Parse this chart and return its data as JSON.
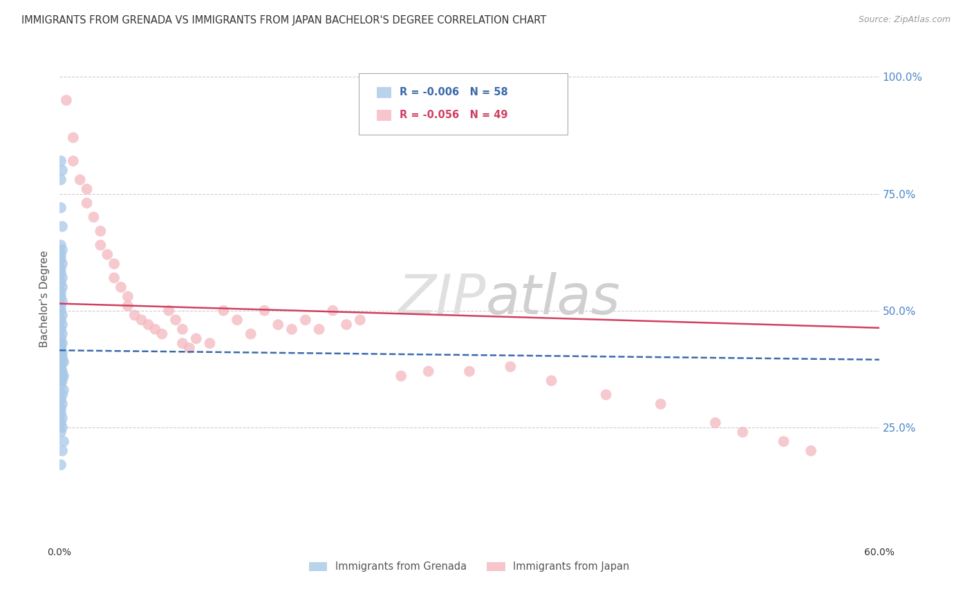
{
  "title": "IMMIGRANTS FROM GRENADA VS IMMIGRANTS FROM JAPAN BACHELOR'S DEGREE CORRELATION CHART",
  "source": "Source: ZipAtlas.com",
  "ylabel": "Bachelor's Degree",
  "ytick_labels": [
    "100.0%",
    "75.0%",
    "50.0%",
    "25.0%"
  ],
  "ytick_values": [
    1.0,
    0.75,
    0.5,
    0.25
  ],
  "xlim": [
    0.0,
    0.6
  ],
  "ylim": [
    0.0,
    1.05
  ],
  "grenada_color": "#a8c8e8",
  "japan_color": "#f4b8c0",
  "grenada_trend_color": "#3a6aaa",
  "japan_trend_color": "#d04060",
  "background_color": "#ffffff",
  "R_grenada": -0.006,
  "R_japan": -0.056,
  "N_grenada": 58,
  "N_japan": 49,
  "grenada_trend_start_y": 0.415,
  "grenada_trend_end_y": 0.395,
  "japan_trend_start_y": 0.515,
  "japan_trend_end_y": 0.463,
  "grenada_x": [
    0.001,
    0.002,
    0.001,
    0.001,
    0.002,
    0.001,
    0.002,
    0.001,
    0.001,
    0.002,
    0.001,
    0.001,
    0.002,
    0.001,
    0.002,
    0.001,
    0.001,
    0.002,
    0.001,
    0.001,
    0.002,
    0.001,
    0.002,
    0.001,
    0.002,
    0.001,
    0.001,
    0.002,
    0.001,
    0.001,
    0.002,
    0.001,
    0.001,
    0.002,
    0.003,
    0.002,
    0.001,
    0.001,
    0.002,
    0.001,
    0.002,
    0.003,
    0.001,
    0.002,
    0.001,
    0.003,
    0.002,
    0.001,
    0.002,
    0.001,
    0.001,
    0.002,
    0.001,
    0.002,
    0.001,
    0.003,
    0.002,
    0.001
  ],
  "grenada_y": [
    0.82,
    0.8,
    0.78,
    0.72,
    0.68,
    0.64,
    0.63,
    0.62,
    0.61,
    0.6,
    0.59,
    0.58,
    0.57,
    0.56,
    0.55,
    0.54,
    0.53,
    0.52,
    0.51,
    0.5,
    0.49,
    0.48,
    0.47,
    0.46,
    0.45,
    0.44,
    0.43,
    0.43,
    0.42,
    0.42,
    0.41,
    0.41,
    0.4,
    0.4,
    0.39,
    0.39,
    0.38,
    0.38,
    0.37,
    0.37,
    0.36,
    0.36,
    0.35,
    0.35,
    0.34,
    0.33,
    0.32,
    0.31,
    0.3,
    0.29,
    0.28,
    0.27,
    0.26,
    0.25,
    0.24,
    0.22,
    0.2,
    0.17
  ],
  "japan_x": [
    0.005,
    0.01,
    0.01,
    0.015,
    0.02,
    0.02,
    0.025,
    0.03,
    0.03,
    0.035,
    0.04,
    0.04,
    0.045,
    0.05,
    0.05,
    0.055,
    0.06,
    0.065,
    0.07,
    0.075,
    0.08,
    0.085,
    0.09,
    0.09,
    0.095,
    0.1,
    0.11,
    0.12,
    0.13,
    0.14,
    0.15,
    0.16,
    0.17,
    0.18,
    0.19,
    0.2,
    0.21,
    0.22,
    0.25,
    0.27,
    0.3,
    0.33,
    0.36,
    0.4,
    0.44,
    0.48,
    0.5,
    0.53,
    0.55
  ],
  "japan_y": [
    0.95,
    0.87,
    0.82,
    0.78,
    0.76,
    0.73,
    0.7,
    0.67,
    0.64,
    0.62,
    0.6,
    0.57,
    0.55,
    0.53,
    0.51,
    0.49,
    0.48,
    0.47,
    0.46,
    0.45,
    0.5,
    0.48,
    0.46,
    0.43,
    0.42,
    0.44,
    0.43,
    0.5,
    0.48,
    0.45,
    0.5,
    0.47,
    0.46,
    0.48,
    0.46,
    0.5,
    0.47,
    0.48,
    0.36,
    0.37,
    0.37,
    0.38,
    0.35,
    0.32,
    0.3,
    0.26,
    0.24,
    0.22,
    0.2
  ]
}
